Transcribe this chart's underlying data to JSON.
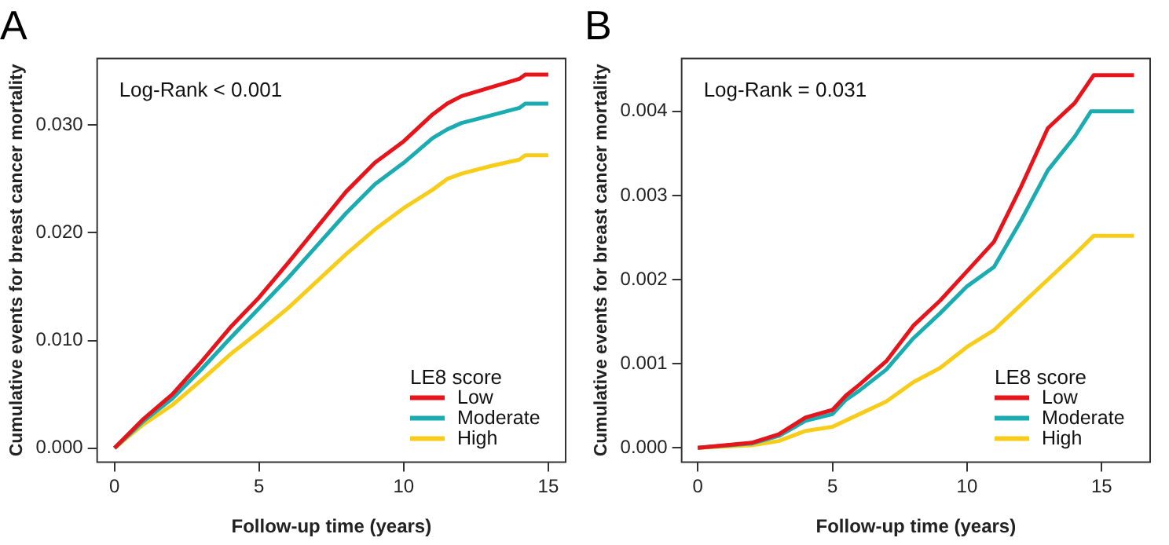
{
  "chart_data": [
    {
      "type": "line",
      "title": "A",
      "xlabel": "Follow-up time (years)",
      "ylabel": "Cumulative events for breast cancer mortality",
      "legend_title": "LE8 score",
      "legend": "bottom right",
      "grid": false,
      "annotations": [
        "Log-Rank < 0.001"
      ],
      "xlim": [
        -0.6,
        15.6
      ],
      "xticks": [
        0,
        5,
        10,
        15
      ],
      "ylim": [
        -0.0013,
        0.0362
      ],
      "yticks": [
        {
          "value": 0,
          "label": "0.000"
        },
        {
          "value": 0.01,
          "label": "0.010"
        },
        {
          "value": 0.02,
          "label": "0.020"
        },
        {
          "value": 0.03,
          "label": "0.030"
        }
      ],
      "series": [
        {
          "name": "Low",
          "color": "#e8141b",
          "x": [
            0,
            1,
            2,
            3,
            4,
            5,
            6,
            7,
            8,
            9,
            10,
            11,
            11.5,
            12,
            13,
            14,
            14.2,
            15
          ],
          "values": [
            0,
            0.0027,
            0.005,
            0.008,
            0.0112,
            0.014,
            0.0172,
            0.0205,
            0.0238,
            0.0265,
            0.0285,
            0.031,
            0.032,
            0.0327,
            0.0335,
            0.0343,
            0.0347,
            0.0347
          ]
        },
        {
          "name": "Moderate",
          "color": "#1aacb0",
          "x": [
            0,
            1,
            2,
            3,
            4,
            5,
            6,
            7,
            8,
            9,
            10,
            11,
            11.5,
            12,
            13,
            14,
            14.2,
            15
          ],
          "values": [
            0,
            0.0025,
            0.0046,
            0.0073,
            0.0102,
            0.013,
            0.0158,
            0.0188,
            0.0218,
            0.0245,
            0.0265,
            0.0288,
            0.0296,
            0.0302,
            0.0309,
            0.0316,
            0.032,
            0.032
          ]
        },
        {
          "name": "High",
          "color": "#f7cd1a",
          "x": [
            0,
            1,
            2,
            3,
            4,
            5,
            6,
            7,
            8,
            9,
            10,
            11,
            11.5,
            12,
            13,
            14,
            14.2,
            15
          ],
          "values": [
            0,
            0.0022,
            0.004,
            0.0063,
            0.0087,
            0.0108,
            0.013,
            0.0155,
            0.018,
            0.0203,
            0.0223,
            0.024,
            0.025,
            0.0255,
            0.0262,
            0.0268,
            0.0272,
            0.0272
          ]
        }
      ]
    },
    {
      "type": "line",
      "title": "B",
      "xlabel": "Follow-up time (years)",
      "ylabel": "Cumulative events for breast cancer mortality",
      "legend_title": "LE8 score",
      "legend": "bottom right",
      "grid": false,
      "annotations": [
        "Log-Rank = 0.031"
      ],
      "xlim": [
        -0.6,
        16.8
      ],
      "xticks": [
        0,
        5,
        10,
        15
      ],
      "ylim": [
        -0.00017,
        0.00463
      ],
      "yticks": [
        {
          "value": 0,
          "label": "0.000"
        },
        {
          "value": 0.001,
          "label": "0.001"
        },
        {
          "value": 0.002,
          "label": "0.002"
        },
        {
          "value": 0.003,
          "label": "0.003"
        },
        {
          "value": 0.004,
          "label": "0.004"
        }
      ],
      "series": [
        {
          "name": "Low",
          "color": "#e8141b",
          "x": [
            0,
            2,
            3,
            4,
            5,
            5.5,
            6,
            7,
            8,
            9,
            10,
            11,
            12,
            13,
            14,
            14.7,
            16.2
          ],
          "values": [
            0,
            6e-05,
            0.00016,
            0.00036,
            0.00045,
            0.00062,
            0.00075,
            0.00103,
            0.00145,
            0.00175,
            0.0021,
            0.00245,
            0.0031,
            0.0038,
            0.0041,
            0.00443,
            0.00443
          ]
        },
        {
          "name": "Moderate",
          "color": "#1aacb0",
          "x": [
            0,
            2,
            3,
            4,
            5,
            5.5,
            6,
            7,
            8,
            9,
            10,
            11,
            12,
            13,
            14,
            14.6,
            16.2
          ],
          "values": [
            0,
            5e-05,
            0.00014,
            0.00032,
            0.0004,
            0.00057,
            0.00068,
            0.00093,
            0.0013,
            0.0016,
            0.00192,
            0.00215,
            0.0027,
            0.0033,
            0.0037,
            0.004,
            0.004
          ]
        },
        {
          "name": "High",
          "color": "#f7cd1a",
          "x": [
            0,
            2,
            3,
            4,
            5,
            6,
            7,
            8,
            9,
            10,
            11,
            12,
            13,
            14,
            14.7,
            16.2
          ],
          "values": [
            0,
            3e-05,
            8e-05,
            0.0002,
            0.00025,
            0.0004,
            0.00055,
            0.00078,
            0.00095,
            0.0012,
            0.0014,
            0.0017,
            0.002,
            0.0023,
            0.00252,
            0.00252
          ]
        }
      ]
    }
  ]
}
